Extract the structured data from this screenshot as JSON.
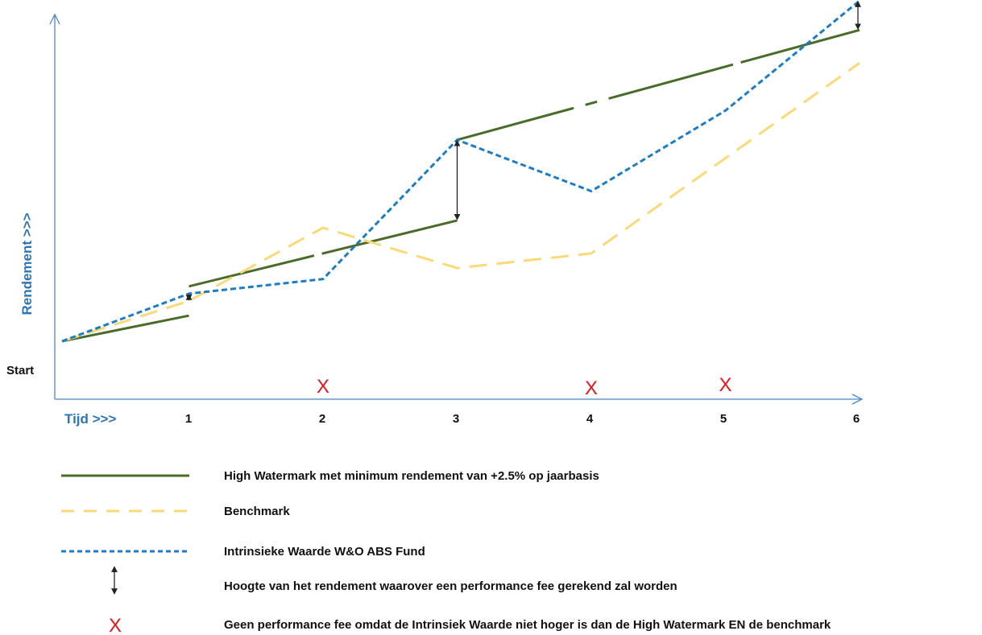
{
  "colors": {
    "watermark": "#4A6B2A",
    "benchmark": "#FAD978",
    "fund": "#1B7DC4",
    "arrow": "#222222",
    "no_fee": "#E8141C",
    "axis": "#4A86D0",
    "axis_label": "#2E75B6"
  },
  "chart_data": {
    "type": "line",
    "xlabel": "Tijd >>>",
    "ylabel": "Rendement >>>",
    "start_label": "Start",
    "x_ticks": [
      "1",
      "2",
      "3",
      "4",
      "5",
      "6"
    ],
    "xlim": [
      0,
      6
    ],
    "ylim": [
      0,
      100
    ],
    "grid": false,
    "series": [
      {
        "name": "High Watermark met minimum rendement van +2.5% op jaarbasis",
        "style": "solid",
        "segments": [
          [
            [
              0,
              9
            ],
            [
              1,
              16
            ]
          ],
          [
            [
              1,
              24
            ],
            [
              3,
              42
            ]
          ],
          [
            [
              3,
              64
            ],
            [
              6,
              94
            ]
          ]
        ]
      },
      {
        "name": "Benchmark",
        "style": "long-dash",
        "points": [
          [
            0,
            9
          ],
          [
            1,
            20
          ],
          [
            2,
            40
          ],
          [
            3,
            29
          ],
          [
            4,
            33
          ],
          [
            5,
            59
          ],
          [
            6,
            85
          ]
        ]
      },
      {
        "name": "Intrinsieke Waarde W&O ABS Fund",
        "style": "short-dash",
        "points": [
          [
            0,
            9
          ],
          [
            1,
            22
          ],
          [
            2,
            26
          ],
          [
            3,
            64
          ],
          [
            4,
            50
          ],
          [
            5,
            72
          ],
          [
            6,
            102
          ]
        ]
      }
    ],
    "fee_arrows": [
      {
        "x": 1,
        "from": 20,
        "to": 22
      },
      {
        "x": 3,
        "from": 42,
        "to": 64
      },
      {
        "x": 6,
        "from": 94,
        "to": 102
      }
    ],
    "no_fee_marks": [
      {
        "x": 2,
        "label": "X"
      },
      {
        "x": 4,
        "label": "X"
      },
      {
        "x": 5,
        "label": "X"
      }
    ],
    "legend": [
      {
        "key": "watermark",
        "label": "High Watermark met minimum rendement van +2.5% op jaarbasis"
      },
      {
        "key": "benchmark",
        "label": "Benchmark"
      },
      {
        "key": "fund",
        "label": "Intrinsieke Waarde W&O ABS Fund"
      },
      {
        "key": "arrow",
        "label": "Hoogte van het rendement waarover een performance fee gerekend zal worden"
      },
      {
        "key": "no_fee",
        "symbol": "X",
        "label": "Geen performance fee omdat de Intrinsiek Waarde niet hoger is dan de High Watermark EN de benchmark"
      }
    ]
  }
}
